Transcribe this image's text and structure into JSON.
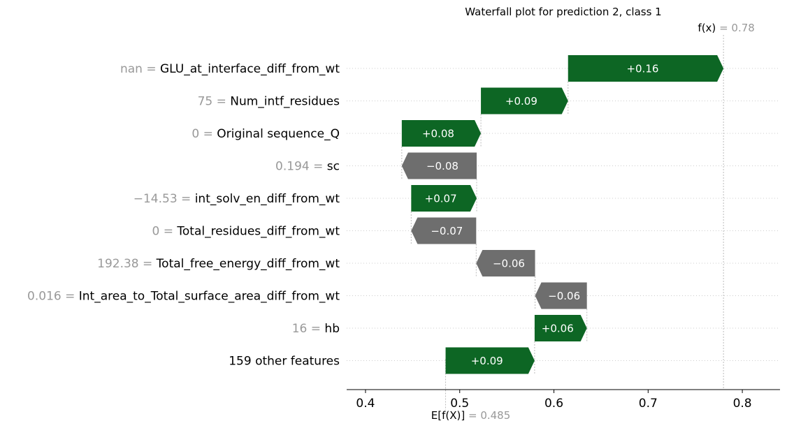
{
  "chart_data": {
    "type": "waterfall",
    "title": "Waterfall plot for prediction 2, class 1",
    "base_value": 0.485,
    "final_value": 0.78,
    "base_label_var": "E[f(X)]",
    "base_label_eq": "= 0.485",
    "final_label_var": "f(x)",
    "final_label_eq": "= 0.78",
    "xlim": [
      0.38,
      0.84
    ],
    "xticks": [
      0.4,
      0.5,
      0.6,
      0.7,
      0.8
    ],
    "xtick_labels": [
      "0.4",
      "0.5",
      "0.6",
      "0.7",
      "0.8"
    ],
    "grid": "horizontal dotted",
    "colors": {
      "positive": "#0d6624",
      "negative": "#6e6e6e",
      "value_text": "#999999",
      "guide": "#cccccc"
    },
    "features": [
      {
        "value": "nan",
        "eq": "=",
        "name": "GLU_at_interface_diff_from_wt",
        "start": 0.615,
        "end": 0.78,
        "label": "+0.16"
      },
      {
        "value": "75",
        "eq": "=",
        "name": "Num_intf_residues",
        "start": 0.5225,
        "end": 0.615,
        "label": "+0.09"
      },
      {
        "value": "0",
        "eq": "=",
        "name": "Original sequence_Q",
        "start": 0.4385,
        "end": 0.5225,
        "label": "+0.08"
      },
      {
        "value": "0.194",
        "eq": "=",
        "name": "sc",
        "start": 0.518,
        "end": 0.4385,
        "label": "−0.08"
      },
      {
        "value": "−14.53",
        "eq": "=",
        "name": "int_solv_en_diff_from_wt",
        "start": 0.4485,
        "end": 0.518,
        "label": "+0.07"
      },
      {
        "value": "0",
        "eq": "=",
        "name": "Total_residues_diff_from_wt",
        "start": 0.5175,
        "end": 0.4485,
        "label": "−0.07"
      },
      {
        "value": "192.38",
        "eq": "=",
        "name": "Total_free_energy_diff_from_wt",
        "start": 0.58,
        "end": 0.5175,
        "label": "−0.06"
      },
      {
        "value": "0.016",
        "eq": "=",
        "name": "Int_area_to_Total_surface_area_diff_from_wt",
        "start": 0.635,
        "end": 0.58,
        "label": "−0.06"
      },
      {
        "value": "16",
        "eq": "=",
        "name": "hb",
        "start": 0.5795,
        "end": 0.635,
        "label": "+0.06"
      },
      {
        "value": "",
        "eq": "",
        "name": "159 other features",
        "start": 0.485,
        "end": 0.5795,
        "label": "+0.09"
      }
    ]
  }
}
